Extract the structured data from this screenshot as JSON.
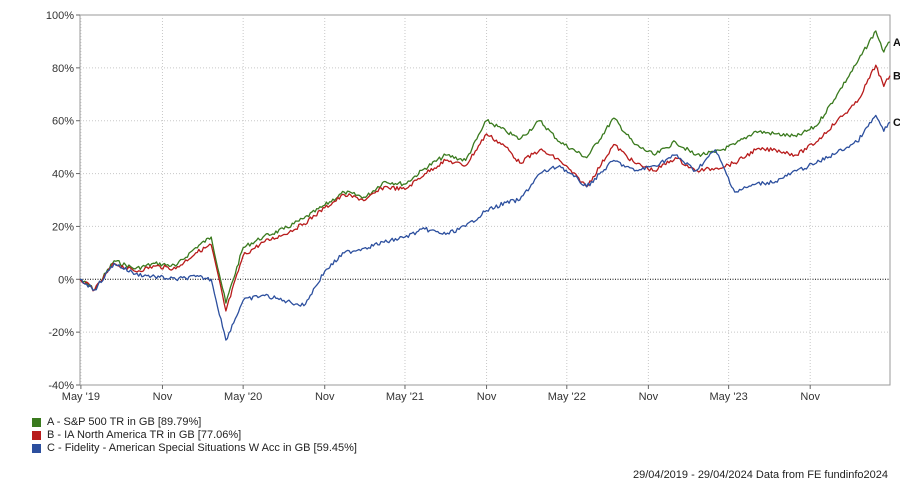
{
  "chart_data": {
    "type": "line",
    "y_tick_labels": [
      "100%",
      "80%",
      "60%",
      "40%",
      "20%",
      "0%",
      "-20%",
      "-40%"
    ],
    "y_tick_values": [
      100,
      80,
      60,
      40,
      20,
      0,
      -20,
      -40
    ],
    "ylim": [
      -40,
      100
    ],
    "x_tick_labels": [
      "May '19",
      "Nov",
      "May '20",
      "Nov",
      "May '21",
      "Nov",
      "May '22",
      "Nov",
      "May '23",
      "Nov"
    ],
    "x_tick_values": [
      "2019-05-01",
      "2019-11-01",
      "2020-05-01",
      "2020-11-01",
      "2021-05-01",
      "2021-11-01",
      "2022-05-01",
      "2022-11-01",
      "2023-05-01",
      "2023-11-01"
    ],
    "xlim": [
      "2019-04-29",
      "2024-04-29"
    ],
    "grid": true,
    "series": [
      {
        "name": "A",
        "legend": "A - S&P 500 TR in GB [89.79%]",
        "color": "#3a7a1e",
        "x": [
          "2019-04-29",
          "2019-06-01",
          "2019-07-15",
          "2019-09-01",
          "2019-10-15",
          "2019-12-01",
          "2020-01-15",
          "2020-02-19",
          "2020-03-23",
          "2020-05-01",
          "2020-06-15",
          "2020-08-01",
          "2020-09-15",
          "2020-11-01",
          "2020-12-15",
          "2021-02-01",
          "2021-03-15",
          "2021-05-01",
          "2021-06-15",
          "2021-08-01",
          "2021-09-15",
          "2021-11-01",
          "2021-12-15",
          "2022-01-15",
          "2022-03-01",
          "2022-04-15",
          "2022-06-15",
          "2022-08-15",
          "2022-10-01",
          "2022-11-15",
          "2023-01-01",
          "2023-02-15",
          "2023-04-01",
          "2023-05-15",
          "2023-07-01",
          "2023-08-15",
          "2023-10-01",
          "2023-11-15",
          "2024-01-01",
          "2024-02-15",
          "2024-03-28",
          "2024-04-15",
          "2024-04-29"
        ],
        "values": [
          0,
          -4,
          7,
          4,
          6,
          5,
          12,
          16,
          -9,
          12,
          16,
          19,
          23,
          28,
          33,
          31,
          37,
          36,
          42,
          47,
          45,
          60,
          56,
          53,
          60,
          52,
          46,
          61,
          51,
          47,
          52,
          47,
          48,
          51,
          56,
          55,
          54,
          58,
          70,
          82,
          94,
          86,
          89.79
        ]
      },
      {
        "name": "B",
        "legend": "B - IA North America TR in GB [77.06%]",
        "color": "#b81b1b",
        "x": [
          "2019-04-29",
          "2019-06-01",
          "2019-07-15",
          "2019-09-01",
          "2019-10-15",
          "2019-12-01",
          "2020-01-15",
          "2020-02-19",
          "2020-03-23",
          "2020-05-01",
          "2020-06-15",
          "2020-08-01",
          "2020-09-15",
          "2020-11-01",
          "2020-12-15",
          "2021-02-01",
          "2021-03-15",
          "2021-05-01",
          "2021-06-15",
          "2021-08-01",
          "2021-09-15",
          "2021-11-01",
          "2021-12-15",
          "2022-01-15",
          "2022-03-01",
          "2022-04-15",
          "2022-06-15",
          "2022-08-15",
          "2022-10-01",
          "2022-11-15",
          "2023-01-01",
          "2023-02-15",
          "2023-04-01",
          "2023-05-15",
          "2023-07-01",
          "2023-08-15",
          "2023-10-01",
          "2023-11-15",
          "2024-01-01",
          "2024-02-15",
          "2024-03-28",
          "2024-04-15",
          "2024-04-29"
        ],
        "values": [
          0,
          -4,
          6,
          3,
          5,
          4,
          10,
          13,
          -12,
          9,
          14,
          17,
          21,
          27,
          32,
          30,
          35,
          34,
          40,
          45,
          43,
          55,
          50,
          44,
          49,
          45,
          35,
          51,
          44,
          41,
          46,
          41,
          42,
          44,
          49,
          49,
          47,
          52,
          60,
          67,
          81,
          73,
          77.06
        ]
      },
      {
        "name": "C",
        "legend": "C - Fidelity - American Special Situations W Acc in GB [59.45%]",
        "color": "#2c4f9e",
        "x": [
          "2019-04-29",
          "2019-06-01",
          "2019-07-15",
          "2019-09-01",
          "2019-10-15",
          "2019-12-01",
          "2020-01-15",
          "2020-02-19",
          "2020-03-23",
          "2020-05-01",
          "2020-06-15",
          "2020-08-01",
          "2020-09-15",
          "2020-11-01",
          "2020-12-15",
          "2021-02-01",
          "2021-03-15",
          "2021-05-01",
          "2021-06-15",
          "2021-08-01",
          "2021-09-15",
          "2021-11-01",
          "2021-12-15",
          "2022-01-15",
          "2022-03-01",
          "2022-04-15",
          "2022-06-15",
          "2022-08-15",
          "2022-10-01",
          "2022-11-15",
          "2023-01-01",
          "2023-02-15",
          "2023-04-01",
          "2023-05-15",
          "2023-07-01",
          "2023-08-15",
          "2023-10-01",
          "2023-11-15",
          "2024-01-01",
          "2024-02-15",
          "2024-03-28",
          "2024-04-15",
          "2024-04-29"
        ],
        "values": [
          0,
          -4,
          6,
          2,
          1,
          0,
          1,
          0,
          -23,
          -8,
          -6,
          -8,
          -10,
          3,
          10,
          12,
          14,
          16,
          19,
          17,
          20,
          26,
          29,
          30,
          40,
          43,
          35,
          45,
          41,
          43,
          47,
          41,
          49,
          33,
          36,
          37,
          41,
          44,
          48,
          52,
          62,
          56,
          59.45
        ]
      }
    ],
    "end_labels": [
      "A",
      "B",
      "C"
    ],
    "legend_placement": "bottom-left",
    "footer": "29/04/2019 - 29/04/2024 Data from FE fundinfo2024"
  }
}
